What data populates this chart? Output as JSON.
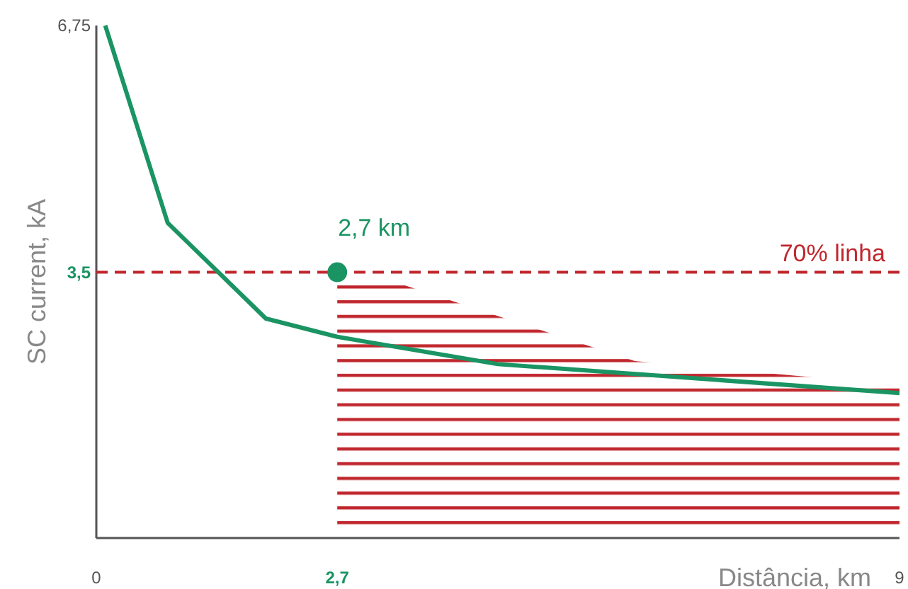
{
  "chart_data": {
    "type": "line",
    "xlabel": "Distância, km",
    "ylabel": "SC current, kA",
    "xlim": [
      0,
      9
    ],
    "ylim": [
      0,
      6.75
    ],
    "xticks": [
      {
        "value": 0,
        "label": "0"
      },
      {
        "value": 2.7,
        "label": "2,7"
      },
      {
        "value": 9,
        "label": "9"
      }
    ],
    "yticks": [
      {
        "value": 3.5,
        "label": "3,5"
      },
      {
        "value": 6.75,
        "label": "6,75"
      }
    ],
    "series": [
      {
        "type": "line",
        "marker": "none",
        "color": "#1a9463",
        "x": [
          0.1,
          0.8,
          1.9,
          2.7,
          4.5,
          9
        ],
        "values": [
          6.75,
          4.15,
          2.89,
          2.65,
          2.29,
          1.91
        ]
      },
      {
        "type": "scatter",
        "marker": "circle",
        "color": "#1a9463",
        "x": [
          2.7
        ],
        "values": [
          3.5
        ]
      }
    ],
    "annotations": [
      {
        "text": "2,7 km",
        "x": 2.7,
        "y": 3.5
      }
    ],
    "ref_lines": [
      {
        "axis": "y",
        "value": 3.5,
        "label": "70% linha",
        "color": "#c0272d",
        "line_style": "dashed"
      }
    ],
    "grid": false,
    "line_style": "solid"
  }
}
